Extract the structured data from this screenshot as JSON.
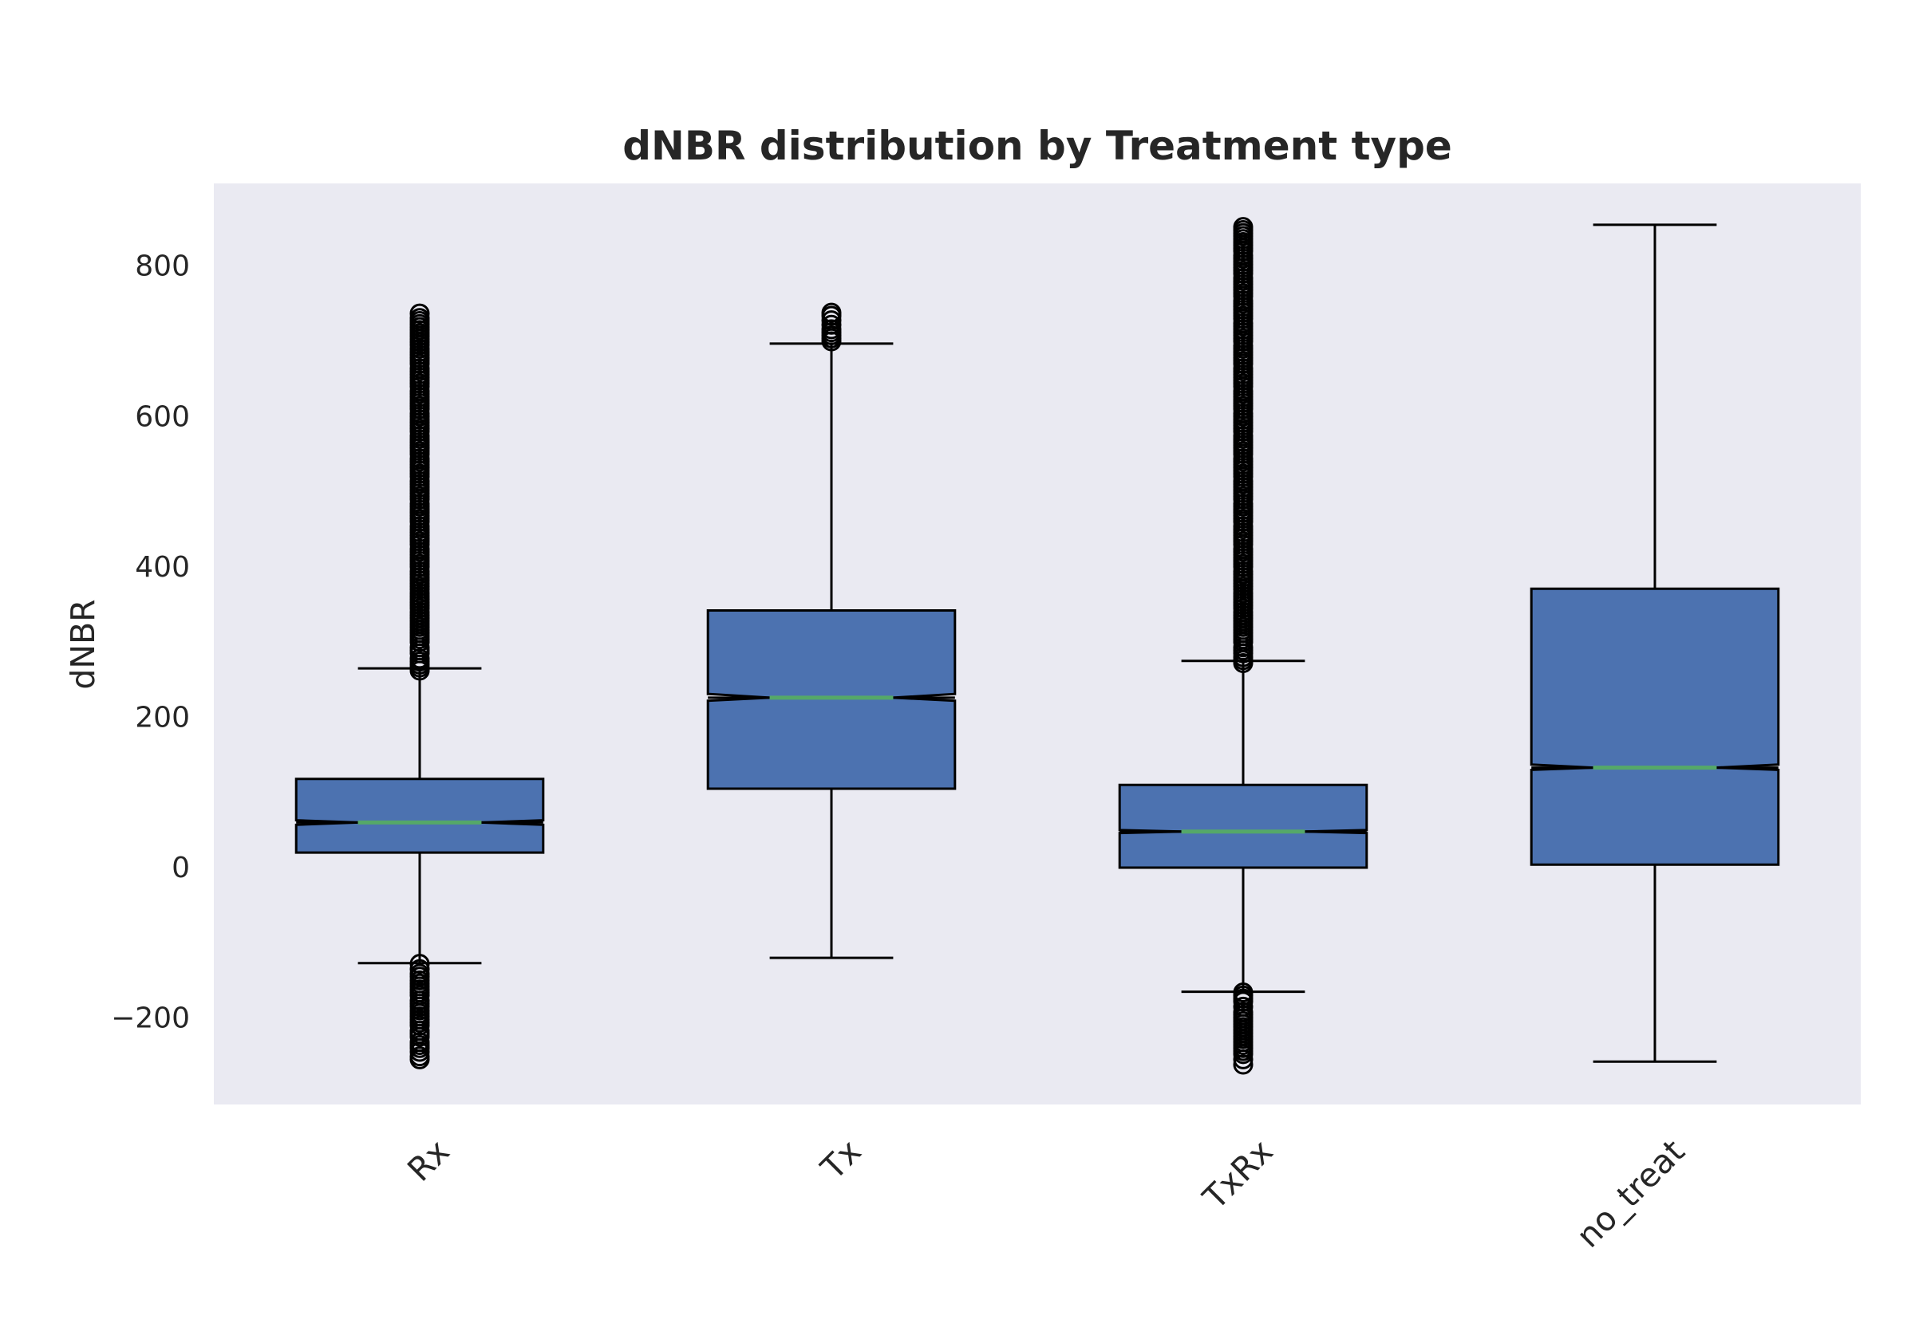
{
  "chart_data": {
    "type": "boxplot",
    "title": "dNBR distribution by Treatment type",
    "xlabel": "",
    "ylabel": "dNBR",
    "ylim": [
      -315,
      910
    ],
    "yticks": [
      -200,
      0,
      200,
      400,
      600,
      800
    ],
    "ytick_labels": [
      "−200",
      "0",
      "200",
      "400",
      "600",
      "800"
    ],
    "grid": false,
    "notched": true,
    "box_color": "#4c72b0",
    "median_color": "#55a868",
    "background_color": "#eaeaf2",
    "categories": [
      "Rx",
      "Tx",
      "TxRx",
      "no_treat"
    ],
    "boxes": [
      {
        "label": "Rx",
        "whisker_low": -127,
        "q1": 20,
        "median": 60,
        "q3": 118,
        "whisker_high": 265,
        "notch": [
          57,
          63
        ],
        "outliers_low": [
          -255,
          -245,
          -240,
          -232,
          -225,
          -210,
          -198,
          -185,
          -170,
          -158,
          -145,
          -135,
          -128
        ],
        "outliers_high": [
          262,
          270,
          285,
          300,
          320,
          345,
          370,
          400,
          430,
          460,
          490,
          520,
          550,
          580,
          610,
          640,
          670,
          695,
          715,
          737
        ]
      },
      {
        "label": "Tx",
        "whisker_low": -120,
        "q1": 105,
        "median": 226,
        "q3": 342,
        "whisker_high": 697,
        "notch": [
          222,
          231
        ],
        "outliers_low": [],
        "outliers_high": [
          700,
          708,
          716,
          722,
          728,
          734,
          738
        ]
      },
      {
        "label": "TxRx",
        "whisker_low": -165,
        "q1": 0,
        "median": 48,
        "q3": 110,
        "whisker_high": 275,
        "notch": [
          46,
          50
        ],
        "outliers_low": [
          -262,
          -255,
          -248,
          -240,
          -232,
          -224,
          -216,
          -208,
          -200,
          -192,
          -185,
          -178,
          -170,
          -166
        ],
        "outliers_high": [
          272,
          285,
          300,
          320,
          345,
          370,
          400,
          430,
          460,
          490,
          520,
          550,
          580,
          610,
          640,
          670,
          700,
          730,
          760,
          790,
          820,
          840,
          852
        ]
      },
      {
        "label": "no_treat",
        "whisker_low": -258,
        "q1": 4,
        "median": 133,
        "q3": 371,
        "whisker_high": 855,
        "notch": [
          130,
          137
        ],
        "outliers_low": [],
        "outliers_high": []
      }
    ]
  }
}
